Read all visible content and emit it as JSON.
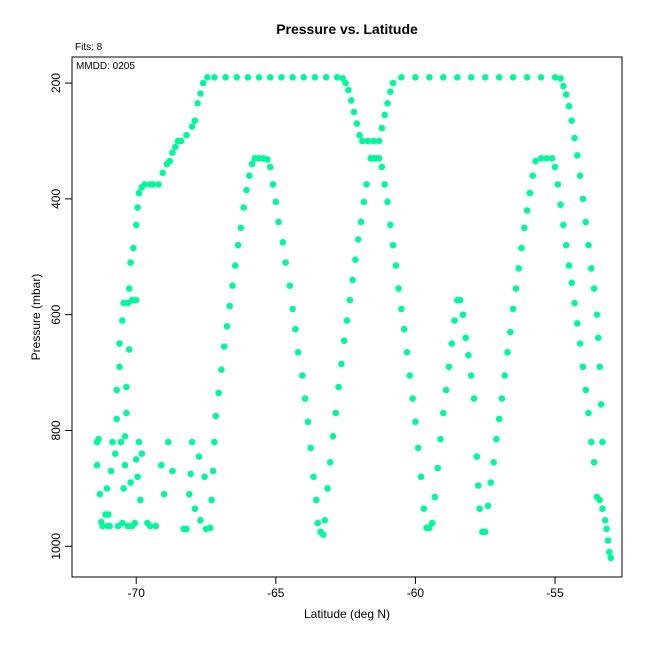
{
  "chart_data": {
    "type": "scatter",
    "title": "Pressure vs. Latitude",
    "subtitle": "Fits: 8",
    "annotation": "MMDD: 0205",
    "xlabel": "Latitude (deg N)",
    "ylabel": "Pressure (mbar)",
    "xlim": [
      -72.3,
      -52.6
    ],
    "ylim": [
      1053,
      155
    ],
    "y_reversed": true,
    "xticks": [
      -70,
      -65,
      -60,
      -55
    ],
    "yticks": [
      200,
      400,
      600,
      800,
      1000
    ],
    "grid": false,
    "legend": "none",
    "point_color": "#00FA9A",
    "series": [
      {
        "points": [
          [
            -71.4,
            860
          ],
          [
            -71.4,
            820
          ],
          [
            -71.35,
            815
          ],
          [
            -71.3,
            910
          ],
          [
            -71.25,
            958
          ],
          [
            -71.2,
            965
          ],
          [
            -71.1,
            945
          ],
          [
            -71.05,
            900
          ],
          [
            -71.0,
            965
          ],
          [
            -71.0,
            945
          ],
          [
            -70.95,
            965
          ],
          [
            -70.9,
            870
          ],
          [
            -70.85,
            820
          ],
          [
            -70.75,
            840
          ],
          [
            -70.7,
            730
          ],
          [
            -70.7,
            780
          ],
          [
            -70.65,
            965
          ],
          [
            -70.6,
            690
          ],
          [
            -70.6,
            650
          ],
          [
            -70.55,
            820
          ],
          [
            -70.5,
            610
          ],
          [
            -70.5,
            960
          ],
          [
            -70.45,
            580
          ],
          [
            -70.45,
            900
          ],
          [
            -70.4,
            860
          ],
          [
            -70.4,
            810
          ],
          [
            -70.35,
            770
          ],
          [
            -70.35,
            725
          ],
          [
            -70.3,
            580
          ],
          [
            -70.3,
            965
          ],
          [
            -70.25,
            555
          ],
          [
            -70.25,
            660
          ],
          [
            -70.2,
            510
          ],
          [
            -70.2,
            890
          ],
          [
            -70.15,
            575
          ],
          [
            -70.15,
            965
          ],
          [
            -70.1,
            485
          ],
          [
            -70.05,
            960
          ],
          [
            -70.0,
            575
          ],
          [
            -70.0,
            445
          ],
          [
            -70.0,
            850
          ],
          [
            -69.95,
            415
          ],
          [
            -69.95,
            880
          ],
          [
            -69.9,
            820
          ],
          [
            -69.9,
            390
          ],
          [
            -69.85,
            920
          ],
          [
            -69.8,
            380
          ],
          [
            -69.8,
            840
          ],
          [
            -69.7,
            375
          ],
          [
            -69.6,
            960
          ],
          [
            -69.5,
            375
          ],
          [
            -69.5,
            965
          ],
          [
            -69.4,
            375
          ],
          [
            -69.3,
            965
          ],
          [
            -69.2,
            375
          ],
          [
            -69.1,
            860
          ],
          [
            -69.05,
            355
          ],
          [
            -69.0,
            910
          ],
          [
            -68.9,
            340
          ],
          [
            -68.85,
            820
          ],
          [
            -68.8,
            335
          ],
          [
            -68.7,
            320
          ],
          [
            -68.7,
            870
          ],
          [
            -68.6,
            310
          ],
          [
            -68.5,
            300
          ],
          [
            -68.4,
            300
          ],
          [
            -68.3,
            970
          ],
          [
            -68.2,
            970
          ],
          [
            -68.2,
            290
          ],
          [
            -68.1,
            910
          ],
          [
            -68.05,
            875
          ],
          [
            -68.0,
            275
          ],
          [
            -68.0,
            820
          ],
          [
            -67.9,
            265
          ],
          [
            -67.9,
            935
          ],
          [
            -67.8,
            235
          ],
          [
            -67.75,
            845
          ],
          [
            -67.7,
            218
          ],
          [
            -67.7,
            955
          ],
          [
            -67.6,
            200
          ],
          [
            -67.55,
            880
          ],
          [
            -67.5,
            970
          ],
          [
            -67.45,
            190
          ],
          [
            -67.35,
            968
          ],
          [
            -67.3,
            920
          ],
          [
            -67.25,
            870
          ],
          [
            -67.2,
            820
          ],
          [
            -67.15,
            775
          ],
          [
            -67.05,
            735
          ],
          [
            -66.95,
            695
          ],
          [
            -66.85,
            655
          ],
          [
            -66.75,
            620
          ],
          [
            -66.65,
            585
          ],
          [
            -66.55,
            550
          ],
          [
            -66.45,
            515
          ],
          [
            -66.35,
            480
          ],
          [
            -66.25,
            450
          ],
          [
            -66.15,
            415
          ],
          [
            -66.05,
            385
          ],
          [
            -65.95,
            360
          ],
          [
            -65.85,
            340
          ],
          [
            -65.75,
            330
          ],
          [
            -65.6,
            330
          ],
          [
            -65.45,
            330
          ],
          [
            -65.3,
            332
          ],
          [
            -65.2,
            345
          ],
          [
            -65.1,
            375
          ],
          [
            -65.0,
            405
          ],
          [
            -64.9,
            440
          ],
          [
            -64.75,
            475
          ],
          [
            -64.65,
            510
          ],
          [
            -64.5,
            550
          ],
          [
            -64.4,
            590
          ],
          [
            -64.3,
            625
          ],
          [
            -64.2,
            665
          ],
          [
            -64.05,
            705
          ],
          [
            -63.95,
            745
          ],
          [
            -63.85,
            785
          ],
          [
            -63.75,
            830
          ],
          [
            -63.65,
            880
          ],
          [
            -63.55,
            920
          ],
          [
            -63.5,
            960
          ],
          [
            -63.4,
            975
          ],
          [
            -63.3,
            980
          ],
          [
            -63.25,
            955
          ],
          [
            -63.15,
            900
          ],
          [
            -63.05,
            855
          ],
          [
            -62.95,
            810
          ],
          [
            -62.85,
            770
          ],
          [
            -62.75,
            725
          ],
          [
            -62.65,
            685
          ],
          [
            -62.55,
            645
          ],
          [
            -62.45,
            610
          ],
          [
            -62.35,
            575
          ],
          [
            -62.25,
            540
          ],
          [
            -62.15,
            505
          ],
          [
            -62.05,
            470
          ],
          [
            -61.95,
            440
          ],
          [
            -61.85,
            405
          ],
          [
            -61.75,
            375
          ],
          [
            -61.6,
            330
          ],
          [
            -61.5,
            330
          ],
          [
            -61.4,
            330
          ],
          [
            -61.3,
            330
          ],
          [
            -61.2,
            345
          ],
          [
            -61.1,
            375
          ],
          [
            -61.0,
            405
          ],
          [
            -60.9,
            445
          ],
          [
            -60.8,
            480
          ],
          [
            -60.7,
            515
          ],
          [
            -60.6,
            555
          ],
          [
            -60.5,
            590
          ],
          [
            -60.4,
            625
          ],
          [
            -60.3,
            665
          ],
          [
            -60.2,
            705
          ],
          [
            -60.1,
            745
          ],
          [
            -60.0,
            785
          ],
          [
            -59.9,
            830
          ],
          [
            -59.8,
            880
          ],
          [
            -59.7,
            935
          ],
          [
            -59.6,
            968
          ],
          [
            -59.5,
            968
          ],
          [
            -59.4,
            960
          ],
          [
            -59.3,
            915
          ],
          [
            -59.2,
            865
          ],
          [
            -59.1,
            815
          ],
          [
            -59.0,
            770
          ],
          [
            -58.9,
            730
          ],
          [
            -58.8,
            690
          ],
          [
            -58.7,
            650
          ],
          [
            -58.6,
            610
          ],
          [
            -58.5,
            575
          ],
          [
            -58.4,
            575
          ],
          [
            -58.3,
            600
          ],
          [
            -58.2,
            640
          ],
          [
            -58.1,
            670
          ],
          [
            -58.0,
            705
          ],
          [
            -57.9,
            745
          ],
          [
            -57.8,
            845
          ],
          [
            -57.75,
            895
          ],
          [
            -57.7,
            935
          ],
          [
            -57.6,
            975
          ],
          [
            -57.5,
            975
          ],
          [
            -57.4,
            930
          ],
          [
            -57.3,
            890
          ],
          [
            -57.2,
            855
          ],
          [
            -57.1,
            815
          ],
          [
            -57.0,
            780
          ],
          [
            -56.9,
            745
          ],
          [
            -56.8,
            705
          ],
          [
            -56.7,
            665
          ],
          [
            -56.6,
            630
          ],
          [
            -56.5,
            590
          ],
          [
            -56.4,
            555
          ],
          [
            -56.3,
            520
          ],
          [
            -56.2,
            485
          ],
          [
            -56.1,
            450
          ],
          [
            -56.0,
            420
          ],
          [
            -55.9,
            390
          ],
          [
            -55.8,
            360
          ],
          [
            -55.7,
            335
          ],
          [
            -55.5,
            330
          ],
          [
            -55.3,
            330
          ],
          [
            -55.1,
            330
          ],
          [
            -55.0,
            345
          ],
          [
            -54.9,
            375
          ],
          [
            -54.8,
            410
          ],
          [
            -54.7,
            445
          ],
          [
            -54.6,
            480
          ],
          [
            -54.5,
            515
          ],
          [
            -54.4,
            545
          ],
          [
            -54.3,
            580
          ],
          [
            -54.2,
            615
          ],
          [
            -54.1,
            650
          ],
          [
            -54.0,
            690
          ],
          [
            -53.9,
            730
          ],
          [
            -53.8,
            770
          ],
          [
            -53.7,
            820
          ],
          [
            -53.6,
            855
          ],
          [
            -53.5,
            915
          ],
          [
            -53.4,
            920
          ],
          [
            -53.3,
            935
          ],
          [
            -53.2,
            955
          ],
          [
            -53.15,
            970
          ],
          [
            -53.1,
            990
          ],
          [
            -53.05,
            1010
          ],
          [
            -53.0,
            1020
          ],
          [
            -53.3,
            820
          ],
          [
            -53.35,
            755
          ],
          [
            -53.4,
            690
          ],
          [
            -53.45,
            640
          ],
          [
            -53.5,
            600
          ],
          [
            -53.6,
            555
          ],
          [
            -53.7,
            520
          ],
          [
            -53.8,
            480
          ],
          [
            -53.9,
            440
          ],
          [
            -54.0,
            400
          ],
          [
            -54.1,
            360
          ],
          [
            -54.2,
            325
          ],
          [
            -54.3,
            295
          ],
          [
            -54.4,
            265
          ],
          [
            -54.5,
            240
          ],
          [
            -54.6,
            220
          ],
          [
            -54.7,
            205
          ],
          [
            -54.8,
            192
          ],
          [
            -55.0,
            190
          ],
          [
            -55.5,
            190
          ],
          [
            -56.0,
            190
          ],
          [
            -56.5,
            190
          ],
          [
            -57.0,
            190
          ],
          [
            -57.5,
            190
          ],
          [
            -58.0,
            190
          ],
          [
            -58.5,
            190
          ],
          [
            -59.0,
            190
          ],
          [
            -59.5,
            190
          ],
          [
            -60.0,
            190
          ],
          [
            -60.5,
            190
          ],
          [
            -60.8,
            200
          ],
          [
            -60.9,
            215
          ],
          [
            -61.0,
            235
          ],
          [
            -61.1,
            255
          ],
          [
            -61.2,
            278
          ],
          [
            -61.3,
            300
          ],
          [
            -61.5,
            300
          ],
          [
            -61.7,
            300
          ],
          [
            -61.9,
            300
          ],
          [
            -62.0,
            290
          ],
          [
            -62.1,
            270
          ],
          [
            -62.2,
            250
          ],
          [
            -62.3,
            230
          ],
          [
            -62.4,
            212
          ],
          [
            -62.5,
            200
          ],
          [
            -62.6,
            192
          ],
          [
            -62.8,
            190
          ],
          [
            -63.2,
            190
          ],
          [
            -63.6,
            190
          ],
          [
            -64.0,
            190
          ],
          [
            -64.4,
            190
          ],
          [
            -64.8,
            190
          ],
          [
            -65.2,
            190
          ],
          [
            -65.6,
            190
          ],
          [
            -66.0,
            190
          ],
          [
            -66.4,
            190
          ],
          [
            -66.8,
            190
          ],
          [
            -67.2,
            190
          ]
        ]
      }
    ]
  }
}
